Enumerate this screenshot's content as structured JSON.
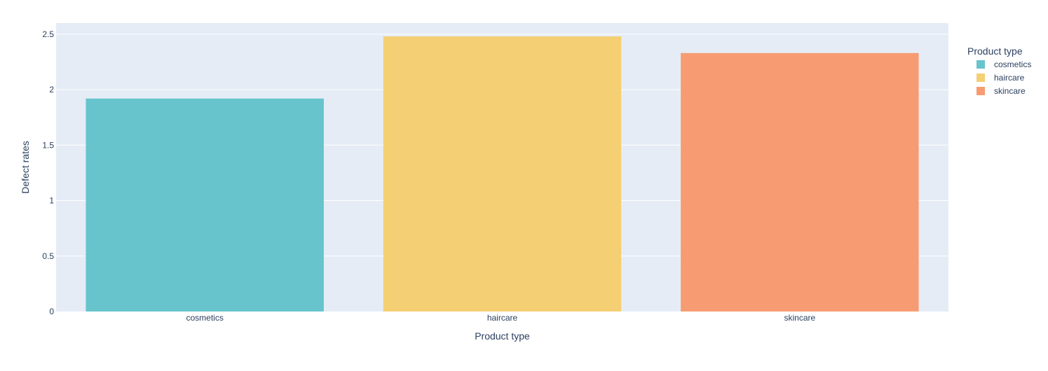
{
  "chart_data": {
    "type": "bar",
    "title": "",
    "xlabel": "Product type",
    "ylabel": "Defect rates",
    "categories": [
      "cosmetics",
      "haircare",
      "skincare"
    ],
    "series": [
      {
        "name": "cosmetics",
        "category": "cosmetics",
        "value": 1.92,
        "color": "#67c4cc"
      },
      {
        "name": "haircare",
        "category": "haircare",
        "value": 2.48,
        "color": "#f4cf73"
      },
      {
        "name": "skincare",
        "category": "skincare",
        "value": 2.33,
        "color": "#f79c72"
      }
    ],
    "ylim": [
      0,
      2.6
    ],
    "yticks": [
      0,
      0.5,
      1,
      1.5,
      2,
      2.5
    ],
    "ytick_labels": [
      "0",
      "0.5",
      "1",
      "1.5",
      "2",
      "2.5"
    ],
    "grid": true,
    "legend": {
      "title": "Product type",
      "position": "right",
      "items": [
        "cosmetics",
        "haircare",
        "skincare"
      ]
    },
    "colors": {
      "plot_background": "#e5ecf6",
      "grid": "#ffffff",
      "text": "#2a3f5f"
    }
  }
}
